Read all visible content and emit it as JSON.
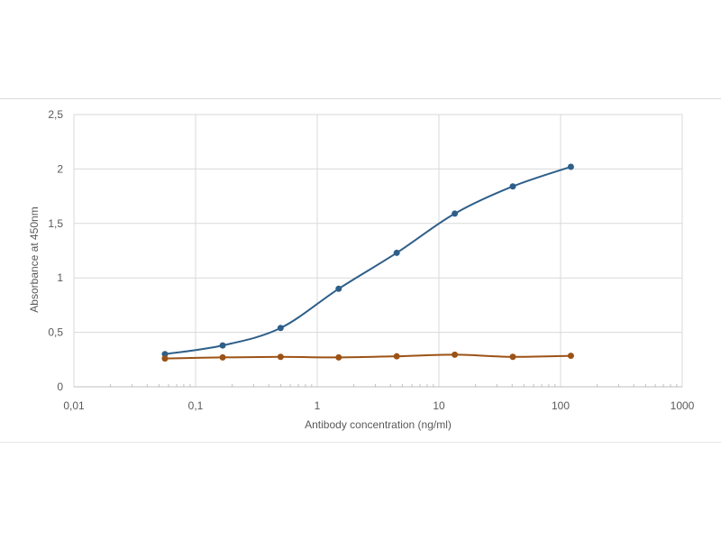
{
  "chart_data": {
    "type": "line",
    "xlabel": "Antibody concentration (ng/ml)",
    "ylabel": "Absorbance at 450nm",
    "x_scale": "log",
    "xlim": [
      0.01,
      1000
    ],
    "ylim": [
      0,
      2.5
    ],
    "x_ticks": [
      "0,01",
      "0,1",
      "1",
      "10",
      "100",
      "1000"
    ],
    "y_ticks": [
      "0",
      "0,5",
      "1",
      "1,5",
      "2",
      "2,5"
    ],
    "grid": true,
    "legend": "none",
    "x": [
      0.056,
      0.167,
      0.5,
      1.5,
      4.5,
      13.5,
      40.5,
      121.5
    ],
    "series": [
      {
        "color": "#2e5f8a",
        "values": [
          0.3,
          0.38,
          0.54,
          0.9,
          1.23,
          1.59,
          1.84,
          2.02
        ]
      },
      {
        "color": "#9c5215",
        "values": [
          0.26,
          0.27,
          0.275,
          0.27,
          0.28,
          0.295,
          0.275,
          0.285
        ]
      }
    ]
  }
}
